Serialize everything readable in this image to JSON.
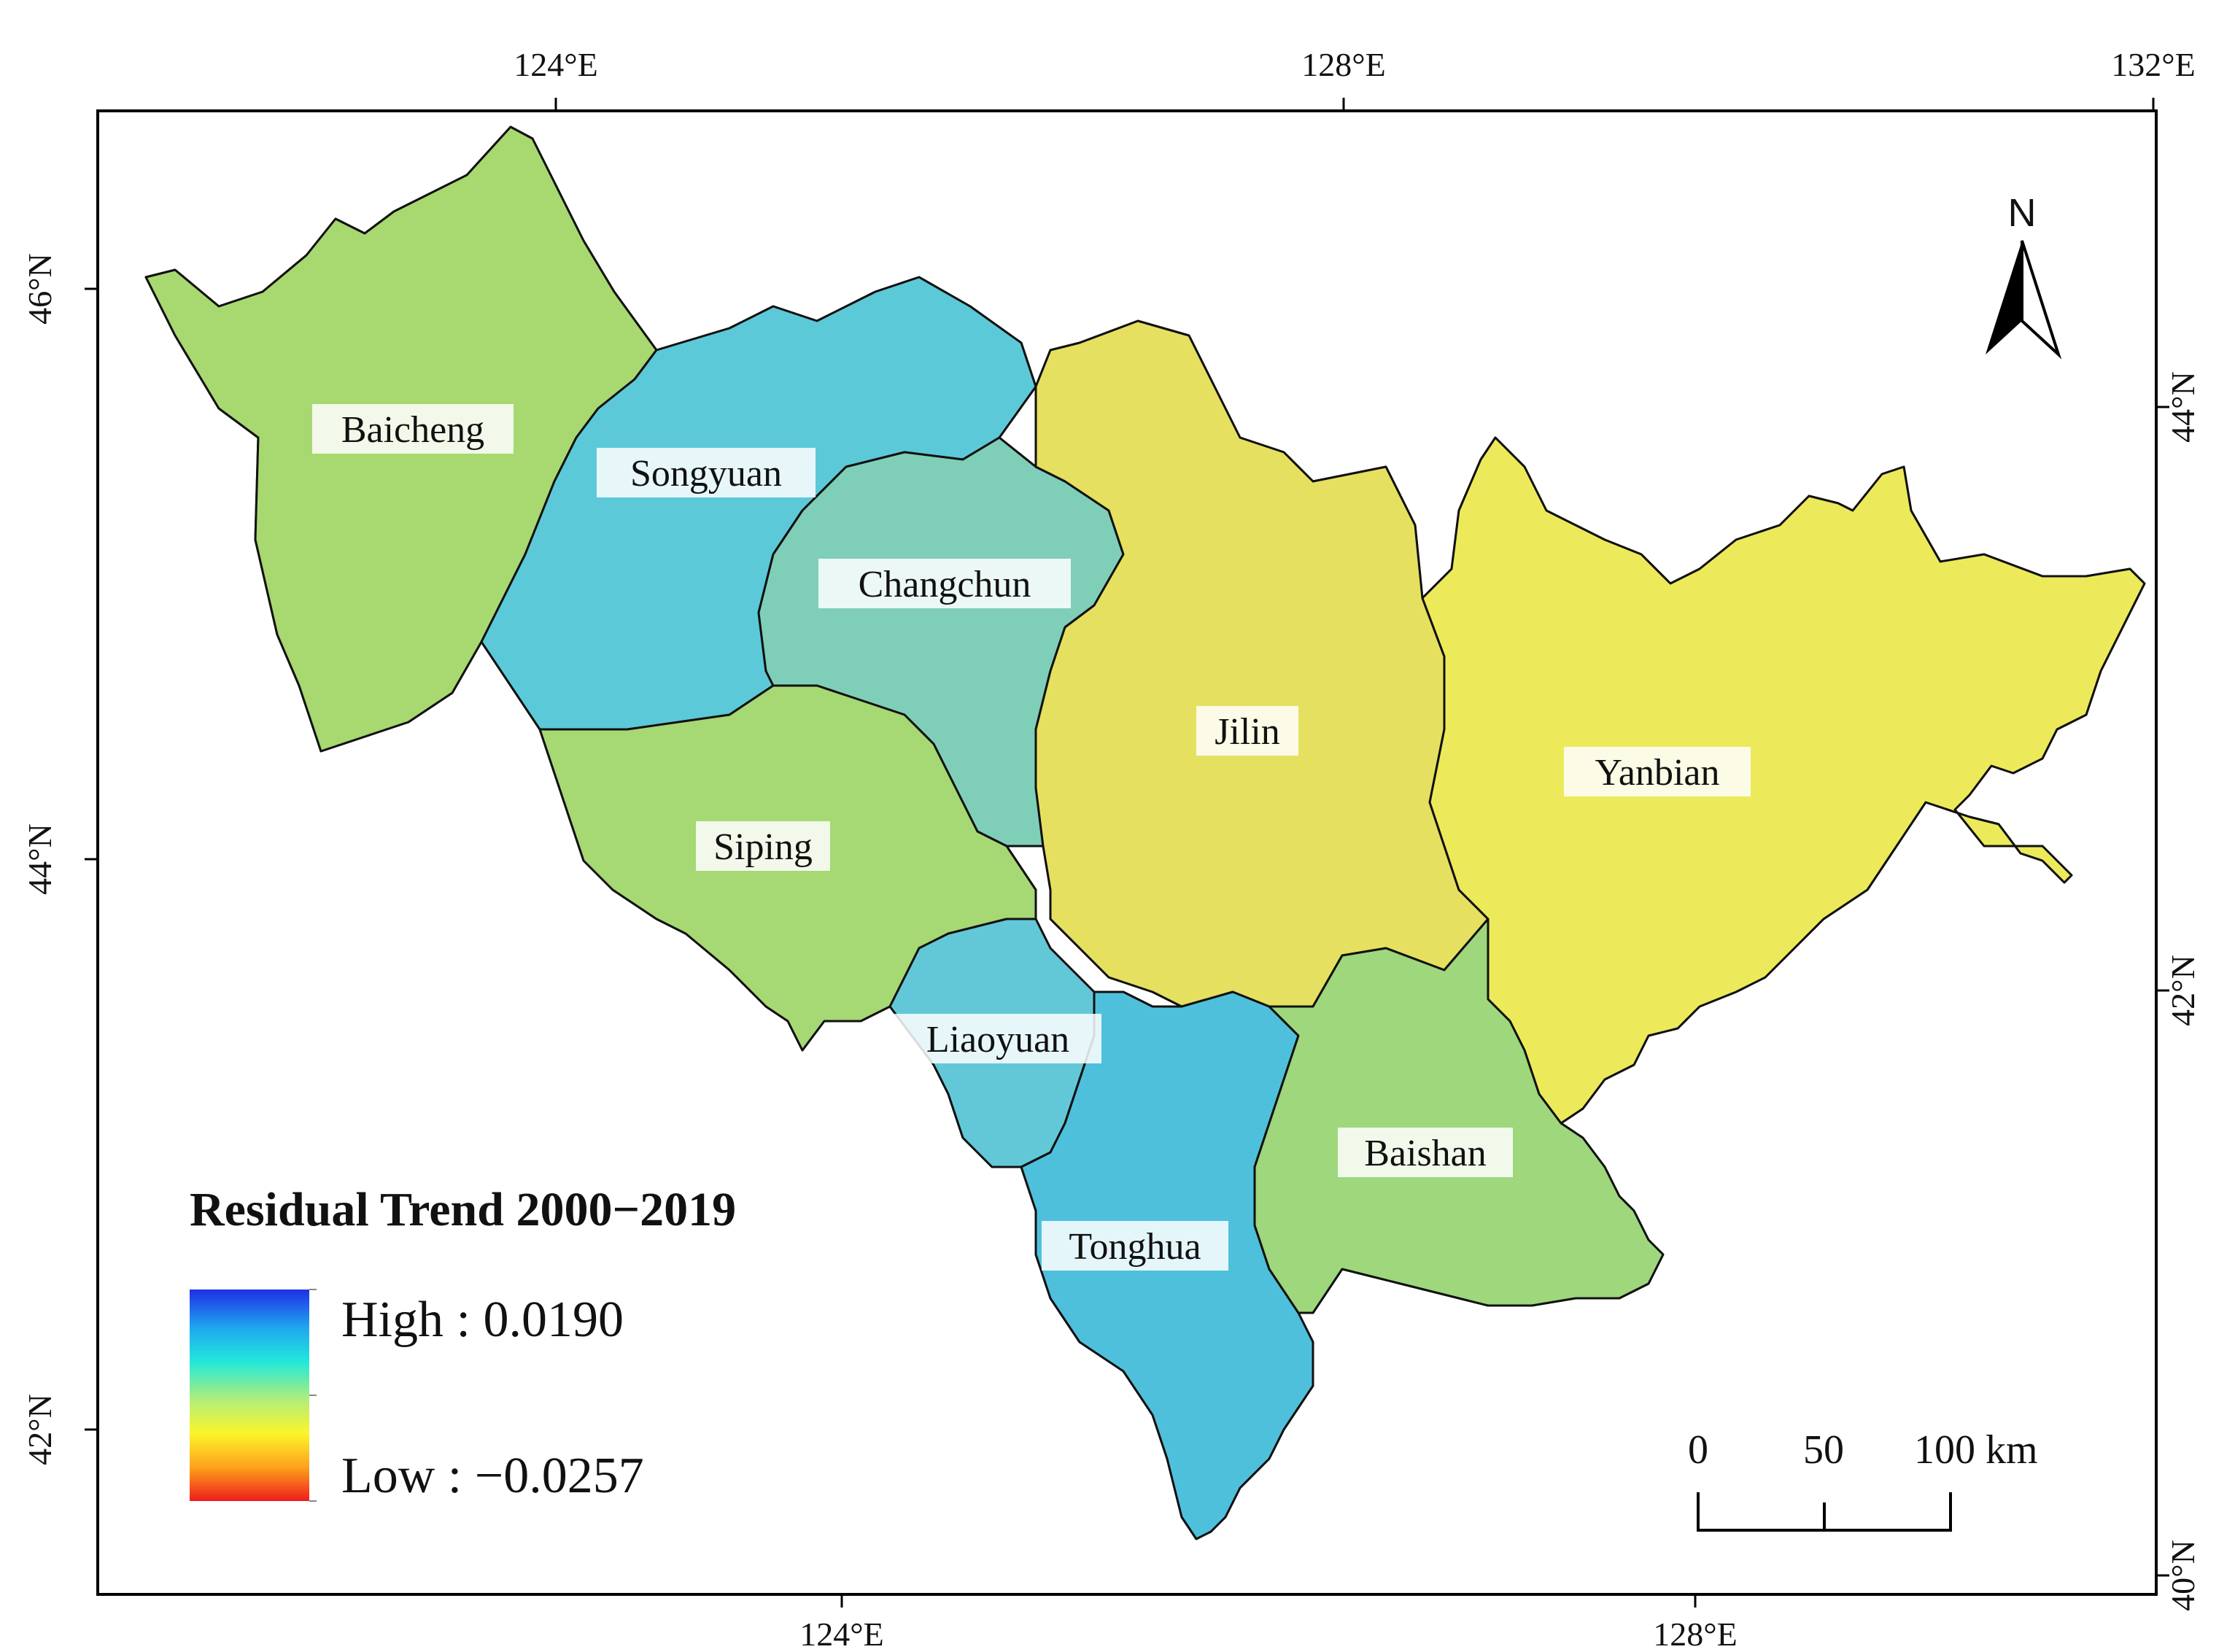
{
  "map": {
    "top_lon_ticks": [
      "124°E",
      "128°E",
      "132°E"
    ],
    "bottom_lon_ticks": [
      "124°E",
      "128°E"
    ],
    "left_lat_ticks": [
      "46°N",
      "44°N",
      "42°N"
    ],
    "right_lat_ticks": [
      "44°N",
      "42°N",
      "40°N"
    ],
    "regions": [
      {
        "name": "Baicheng",
        "color": "#a8d870"
      },
      {
        "name": "Songyuan",
        "color": "#5cc9d8"
      },
      {
        "name": "Changchun",
        "color": "#7fcfb8"
      },
      {
        "name": "Jilin",
        "color": "#e6e060"
      },
      {
        "name": "Yanbian",
        "color": "#ecea5a"
      },
      {
        "name": "Siping",
        "color": "#a6d874"
      },
      {
        "name": "Liaoyuan",
        "color": "#62c8d8"
      },
      {
        "name": "Tonghua",
        "color": "#4fc0dc"
      },
      {
        "name": "Baishan",
        "color": "#9ed77c"
      }
    ],
    "north_label": "N"
  },
  "legend": {
    "title": "Residual Trend 2000−2019",
    "high_label": "High : 0.0190",
    "low_label": "Low : −0.0257",
    "high_value": 0.019,
    "low_value": -0.0257,
    "colors": [
      "#1f2ee6",
      "#1fa6ee",
      "#22e8dc",
      "#b0ee7a",
      "#fbf52a",
      "#fda21c",
      "#ee1c1c"
    ]
  },
  "scale_bar": {
    "labels": [
      "0",
      "50",
      "100 km"
    ]
  }
}
